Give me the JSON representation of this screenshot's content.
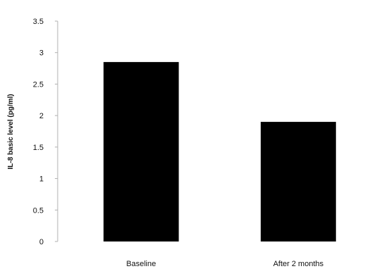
{
  "chart_data": {
    "type": "bar",
    "categories": [
      "Baseline",
      "After 2 months"
    ],
    "values": [
      2.85,
      1.9
    ],
    "ylabel": "IL-8 basic level (pg/ml)",
    "xlabel": "",
    "ylim": [
      0,
      3.5
    ],
    "yticks": [
      "0",
      "0.5",
      "1",
      "1.5",
      "2",
      "2.5",
      "3",
      "3.5"
    ],
    "grid": false,
    "legend": "none",
    "colors": {
      "bar": "#000000",
      "axis": "#b0b0b0",
      "text": "#111111"
    }
  }
}
